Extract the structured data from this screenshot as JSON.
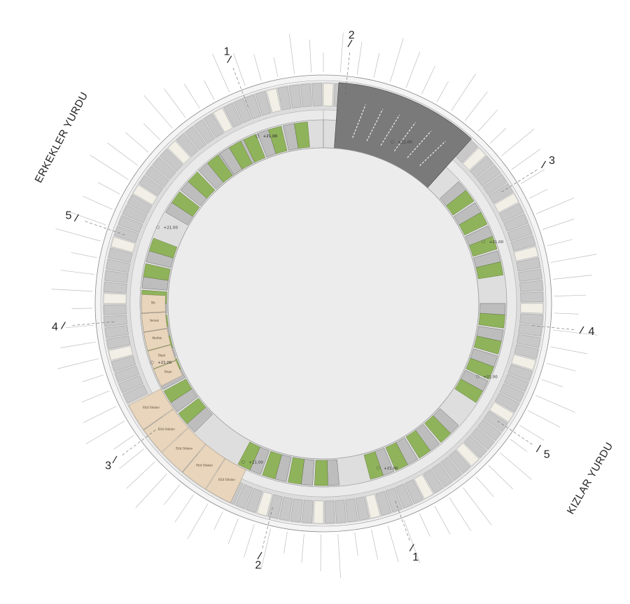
{
  "labels": {
    "boys_dorm": "ERKEKLER YURDU",
    "girls_dorm": "KIZLAR YURDU"
  },
  "section_markers": [
    {
      "id": "1",
      "label": "1"
    },
    {
      "id": "2",
      "label": "2"
    },
    {
      "id": "3",
      "label": "3"
    },
    {
      "id": "4",
      "label": "4"
    },
    {
      "id": "5",
      "label": "5"
    },
    {
      "id": "1b",
      "label": "1"
    },
    {
      "id": "2b",
      "label": "2"
    },
    {
      "id": "3b",
      "label": "3"
    },
    {
      "id": "4b",
      "label": "4"
    },
    {
      "id": "5b",
      "label": "5"
    }
  ],
  "elevation_tag": "+21.00",
  "beige_rooms": [
    "Etüt Odaları",
    "Etüt Odaları",
    "Etüt Odaları",
    "Etüt Odaları",
    "Etüt Odaları",
    "Depo",
    "Depo",
    "Mutfak",
    "Yemek",
    "Wc"
  ],
  "colors": {
    "ring_outer": "#f3f3f3",
    "corridor": "#e8e8e8",
    "unit_gray": "#bdbdbd",
    "unit_dark": "#8a8a8a",
    "green": "#8fb35a",
    "beige": "#e8d5bc",
    "hall_dark": "#7a7a7a",
    "center": "#ededed"
  }
}
